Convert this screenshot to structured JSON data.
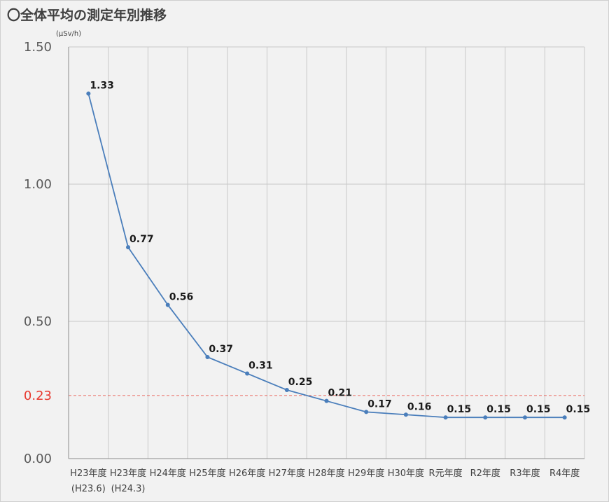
{
  "chart_data": {
    "type": "line",
    "title": "〇全体平均の測定年別推移",
    "ylabel": "(μSv/h)",
    "xlabel": "",
    "ylim": [
      0,
      1.5
    ],
    "yticks": [
      "0.00",
      "0.50",
      "1.00",
      "1.50"
    ],
    "reference_line": {
      "value": 0.23,
      "label": "0.23",
      "color": "#e8392f",
      "style": "dashed"
    },
    "categories": [
      [
        "H23年度",
        "(H23.6)"
      ],
      [
        "H23年度",
        "(H24.3)"
      ],
      [
        "H24年度"
      ],
      [
        "H25年度"
      ],
      [
        "H26年度"
      ],
      [
        "H27年度"
      ],
      [
        "H28年度"
      ],
      [
        "H29年度"
      ],
      [
        "H30年度"
      ],
      [
        "R元年度"
      ],
      [
        "R2年度"
      ],
      [
        "R3年度"
      ],
      [
        "R4年度"
      ]
    ],
    "values": [
      1.33,
      0.77,
      0.56,
      0.37,
      0.31,
      0.25,
      0.21,
      0.17,
      0.16,
      0.15,
      0.15,
      0.15,
      0.15
    ],
    "value_labels": [
      "1.33",
      "0.77",
      "0.56",
      "0.37",
      "0.31",
      "0.25",
      "0.21",
      "0.17",
      "0.16",
      "0.15",
      "0.15",
      "0.15",
      "0.15"
    ],
    "line_color": "#4a7ebb",
    "grid": true,
    "legend": "none"
  }
}
